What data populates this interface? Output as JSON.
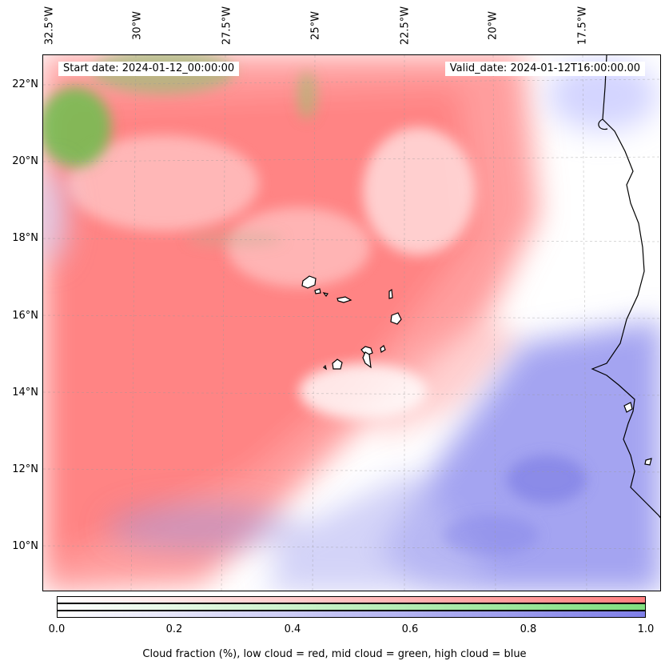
{
  "map": {
    "start_date": "Start date: 2024-01-12_00:00:00",
    "valid_date": "Valid_date: 2024-01-12T16:00:00.00",
    "lon_labels": [
      "32.5°W",
      "30°W",
      "27.5°W",
      "25°W",
      "22.5°W",
      "20°W",
      "17.5°W"
    ],
    "lat_labels": [
      "22°N",
      "20°N",
      "18°N",
      "16°N",
      "14°N",
      "12°N",
      "10°N"
    ],
    "colors": {
      "low": "#ff7f7f",
      "mid": "#7fe07f",
      "high": "#7f7fe8"
    }
  },
  "colorbar": {
    "ticks": [
      "0.0",
      "0.2",
      "0.4",
      "0.6",
      "0.8",
      "1.0"
    ],
    "label": "Cloud fraction (%), low cloud = red, mid cloud = green, high cloud = blue"
  }
}
